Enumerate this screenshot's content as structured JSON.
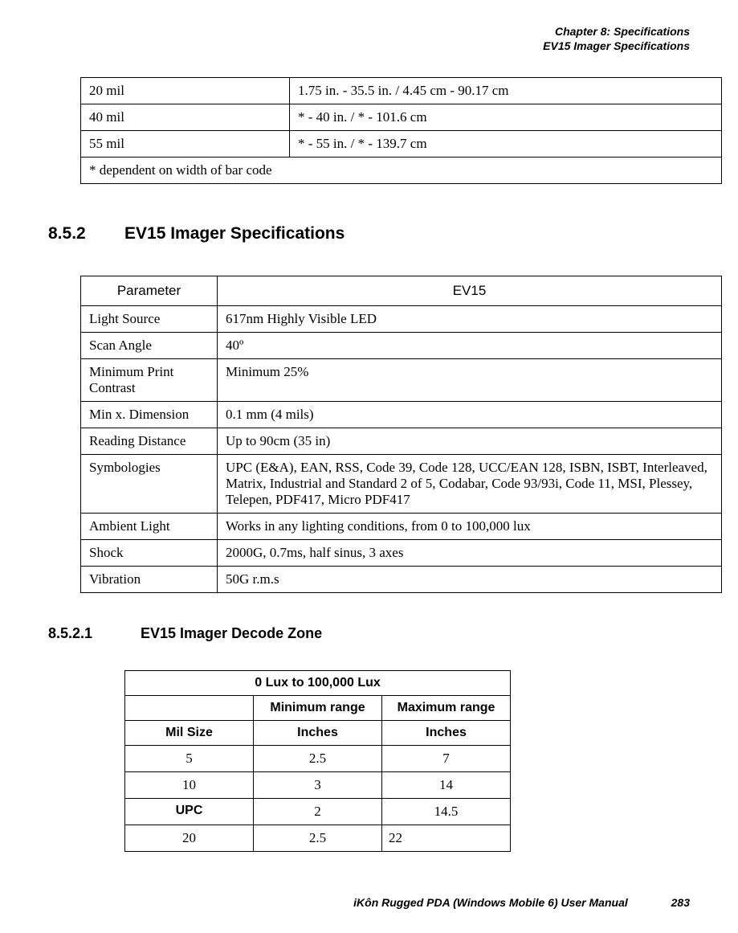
{
  "header": {
    "line1": "Chapter 8: Specifications",
    "line2": "EV15 Imager Specifications"
  },
  "table1": {
    "rows": [
      [
        "20 mil",
        "1.75 in. - 35.5 in. / 4.45 cm - 90.17 cm"
      ],
      [
        "40 mil",
        "* - 40 in. / * - 101.6 cm"
      ],
      [
        "55 mil",
        "* - 55 in. / * - 139.7 cm"
      ]
    ],
    "footnote": "* dependent on width of bar code"
  },
  "section852": {
    "number": "8.5.2",
    "title": "EV15 Imager Specifications"
  },
  "table2": {
    "headers": [
      "Parameter",
      "EV15"
    ],
    "rows": [
      [
        "Light Source",
        "617nm Highly Visible LED"
      ],
      [
        "Scan Angle",
        "40º"
      ],
      [
        "Minimum Print Contrast",
        "Minimum 25%"
      ],
      [
        "Min x. Dimension",
        "0.1 mm (4 mils)"
      ],
      [
        "Reading Distance",
        "Up to 90cm (35 in)"
      ],
      [
        "Symbologies",
        "UPC (E&A), EAN, RSS, Code 39, Code 128, UCC/EAN 128, ISBN, ISBT, Interleaved, Matrix, Industrial and Standard 2 of 5, Codabar, Code 93/93i, Code 11, MSI, Plessey, Telepen, PDF417, Micro PDF417"
      ],
      [
        "Ambient Light",
        "Works in any lighting conditions, from 0 to 100,000 lux"
      ],
      [
        "Shock",
        "2000G, 0.7ms, half sinus, 3 axes"
      ],
      [
        "Vibration",
        "50G r.m.s"
      ]
    ]
  },
  "section8521": {
    "number": "8.5.2.1",
    "title": "EV15 Imager Decode Zone"
  },
  "table3": {
    "title": "0 Lux to 100,000 Lux",
    "sub_headers": [
      "",
      "Minimum range",
      "Maximum range"
    ],
    "unit_row": [
      "Mil Size",
      "Inches",
      "Inches"
    ],
    "rows": [
      [
        "5",
        "2.5",
        "7"
      ],
      [
        "10",
        "3",
        "14"
      ],
      [
        "UPC",
        "2",
        "14.5"
      ],
      [
        "20",
        "2.5",
        "22"
      ]
    ]
  },
  "footer": {
    "text": "iKôn Rugged PDA (Windows Mobile 6) User Manual",
    "page": "283"
  }
}
